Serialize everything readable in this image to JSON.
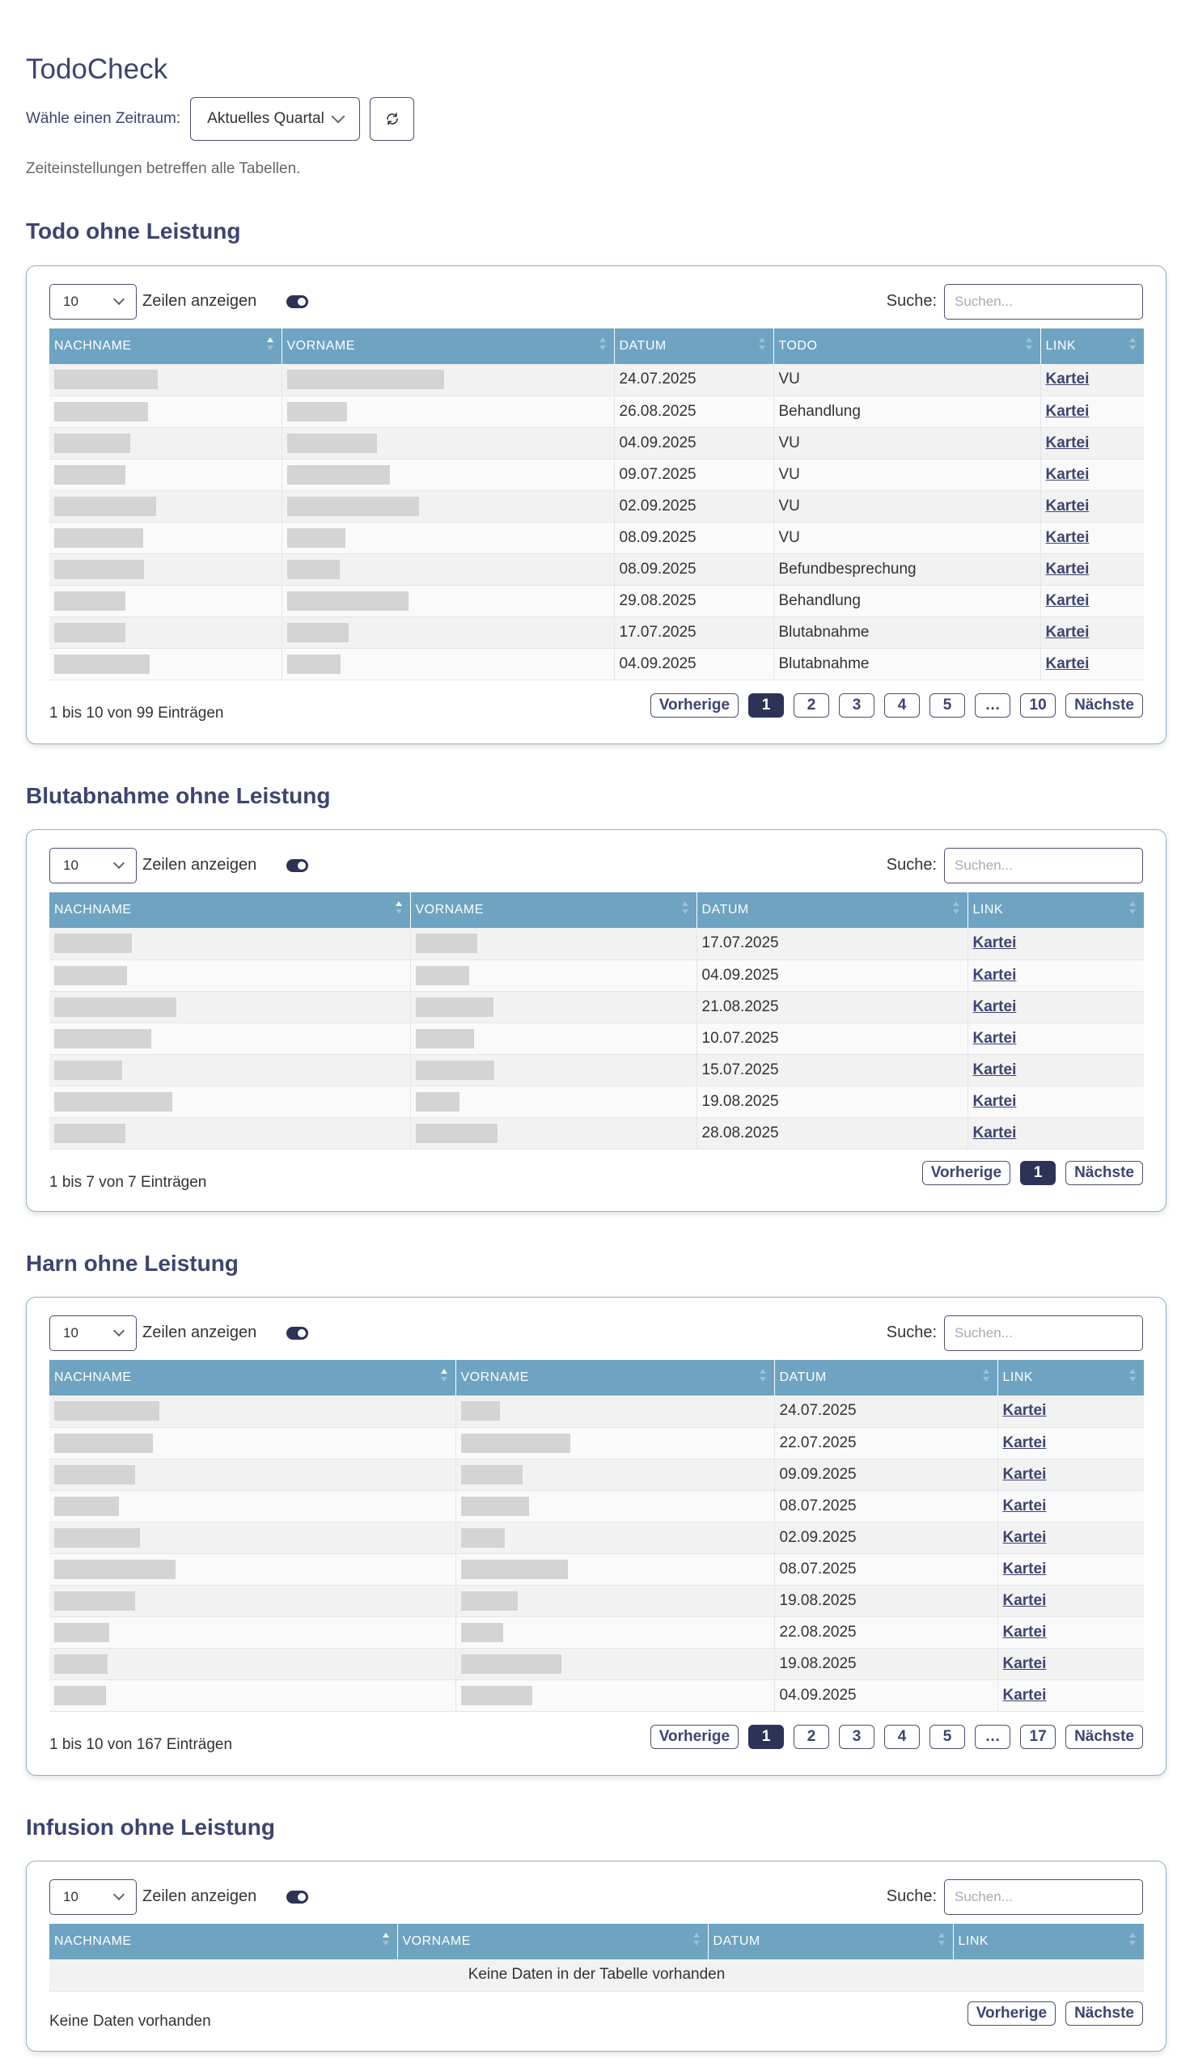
{
  "app": {
    "title": "TodoCheck"
  },
  "period": {
    "label": "Wähle einen Zeitraum:",
    "selected": "Aktuelles Quartal",
    "note": "Zeiteinstellungen betreffen alle Tabellen.",
    "refresh_icon": "refresh-icon"
  },
  "controls": {
    "page_length": "10",
    "length_label": "Zeilen anzeigen",
    "search_label": "Suche:",
    "search_placeholder": "Suchen..."
  },
  "tables": {
    "todo": {
      "title": "Todo ohne Leistung",
      "headers": [
        "NACHNAME",
        "VORNAME",
        "DATUM",
        "TODO",
        "LINK"
      ],
      "rows": [
        {
          "datum": "24.07.2025",
          "todo": "VU",
          "link": "Kartei"
        },
        {
          "datum": "26.08.2025",
          "todo": "Behandlung",
          "link": "Kartei"
        },
        {
          "datum": "04.09.2025",
          "todo": "VU",
          "link": "Kartei"
        },
        {
          "datum": "09.07.2025",
          "todo": "VU",
          "link": "Kartei"
        },
        {
          "datum": "02.09.2025",
          "todo": "VU",
          "link": "Kartei"
        },
        {
          "datum": "08.09.2025",
          "todo": "VU",
          "link": "Kartei"
        },
        {
          "datum": "08.09.2025",
          "todo": "Befundbesprechung",
          "link": "Kartei"
        },
        {
          "datum": "29.08.2025",
          "todo": "Behandlung",
          "link": "Kartei"
        },
        {
          "datum": "17.07.2025",
          "todo": "Blutabnahme",
          "link": "Kartei"
        },
        {
          "datum": "04.09.2025",
          "todo": "Blutabnahme",
          "link": "Kartei"
        }
      ],
      "info": "1 bis 10 von 99 Einträgen",
      "pagination": [
        "Vorherige",
        "1",
        "2",
        "3",
        "4",
        "5",
        "…",
        "10",
        "Nächste"
      ],
      "current_page": "1"
    },
    "blut": {
      "title": "Blutabnahme ohne Leistung",
      "headers": [
        "NACHNAME",
        "VORNAME",
        "DATUM",
        "LINK"
      ],
      "rows": [
        {
          "datum": "17.07.2025",
          "link": "Kartei"
        },
        {
          "datum": "04.09.2025",
          "link": "Kartei"
        },
        {
          "datum": "21.08.2025",
          "link": "Kartei"
        },
        {
          "datum": "10.07.2025",
          "link": "Kartei"
        },
        {
          "datum": "15.07.2025",
          "link": "Kartei"
        },
        {
          "datum": "19.08.2025",
          "link": "Kartei"
        },
        {
          "datum": "28.08.2025",
          "link": "Kartei"
        }
      ],
      "info": "1 bis 7 von 7 Einträgen",
      "pagination": [
        "Vorherige",
        "1",
        "Nächste"
      ],
      "current_page": "1"
    },
    "harn": {
      "title": "Harn ohne Leistung",
      "headers": [
        "NACHNAME",
        "VORNAME",
        "DATUM",
        "LINK"
      ],
      "rows": [
        {
          "datum": "24.07.2025",
          "link": "Kartei"
        },
        {
          "datum": "22.07.2025",
          "link": "Kartei"
        },
        {
          "datum": "09.09.2025",
          "link": "Kartei"
        },
        {
          "datum": "08.07.2025",
          "link": "Kartei"
        },
        {
          "datum": "02.09.2025",
          "link": "Kartei"
        },
        {
          "datum": "08.07.2025",
          "link": "Kartei"
        },
        {
          "datum": "19.08.2025",
          "link": "Kartei"
        },
        {
          "datum": "22.08.2025",
          "link": "Kartei"
        },
        {
          "datum": "19.08.2025",
          "link": "Kartei"
        },
        {
          "datum": "04.09.2025",
          "link": "Kartei"
        }
      ],
      "info": "1 bis 10 von 167 Einträgen",
      "pagination": [
        "Vorherige",
        "1",
        "2",
        "3",
        "4",
        "5",
        "…",
        "17",
        "Nächste"
      ],
      "current_page": "1"
    },
    "infusion": {
      "title": "Infusion ohne Leistung",
      "headers": [
        "NACHNAME",
        "VORNAME",
        "DATUM",
        "LINK"
      ],
      "empty_text": "Keine Daten in der Tabelle vorhanden",
      "info": "Keine Daten vorhanden",
      "pagination": [
        "Vorherige",
        "Nächste"
      ]
    }
  }
}
